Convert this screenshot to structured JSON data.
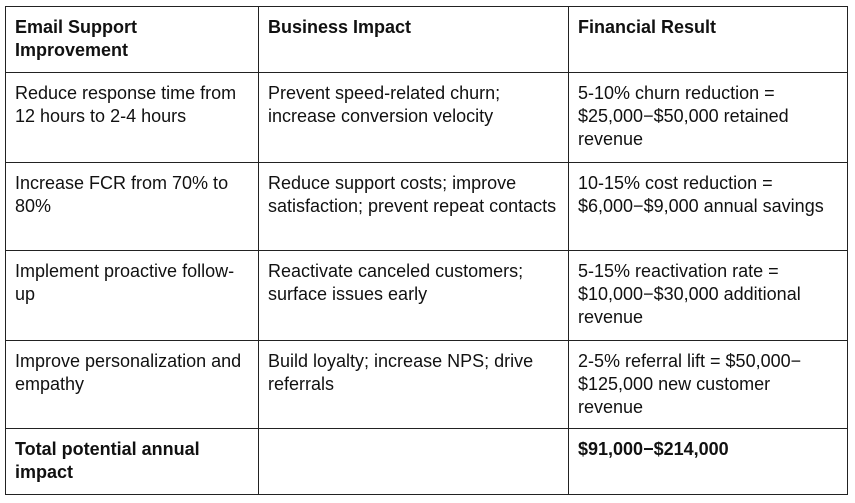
{
  "table": {
    "headers": [
      "Email Support Improvement",
      "Business Impact",
      "Financial Result"
    ],
    "rows": [
      {
        "improvement": "Reduce response time from 12 hours to 2-4 hours",
        "impact": "Prevent speed-related churn; increase conversion velocity",
        "result": "5-10% churn reduction = $25,000−$50,000 retained revenue"
      },
      {
        "improvement": "Increase FCR from 70% to 80%",
        "impact": "Reduce support costs; improve satisfaction; prevent repeat contacts",
        "result": "10-15% cost reduction = $6,000−$9,000 annual savings"
      },
      {
        "improvement": "Implement proactive follow-up",
        "impact": "Reactivate canceled customers; surface issues early",
        "result": "5-15% reactivation rate = $10,000−$30,000 additional revenue"
      },
      {
        "improvement": "Improve personalization and empathy",
        "impact": "Build loyalty; increase NPS; drive referrals",
        "result": "2-5% referral lift = $50,000−$125,000 new customer revenue"
      }
    ],
    "total": {
      "label": "Total potential annual impact",
      "impact": "",
      "result": "$91,000−$214,000"
    }
  }
}
